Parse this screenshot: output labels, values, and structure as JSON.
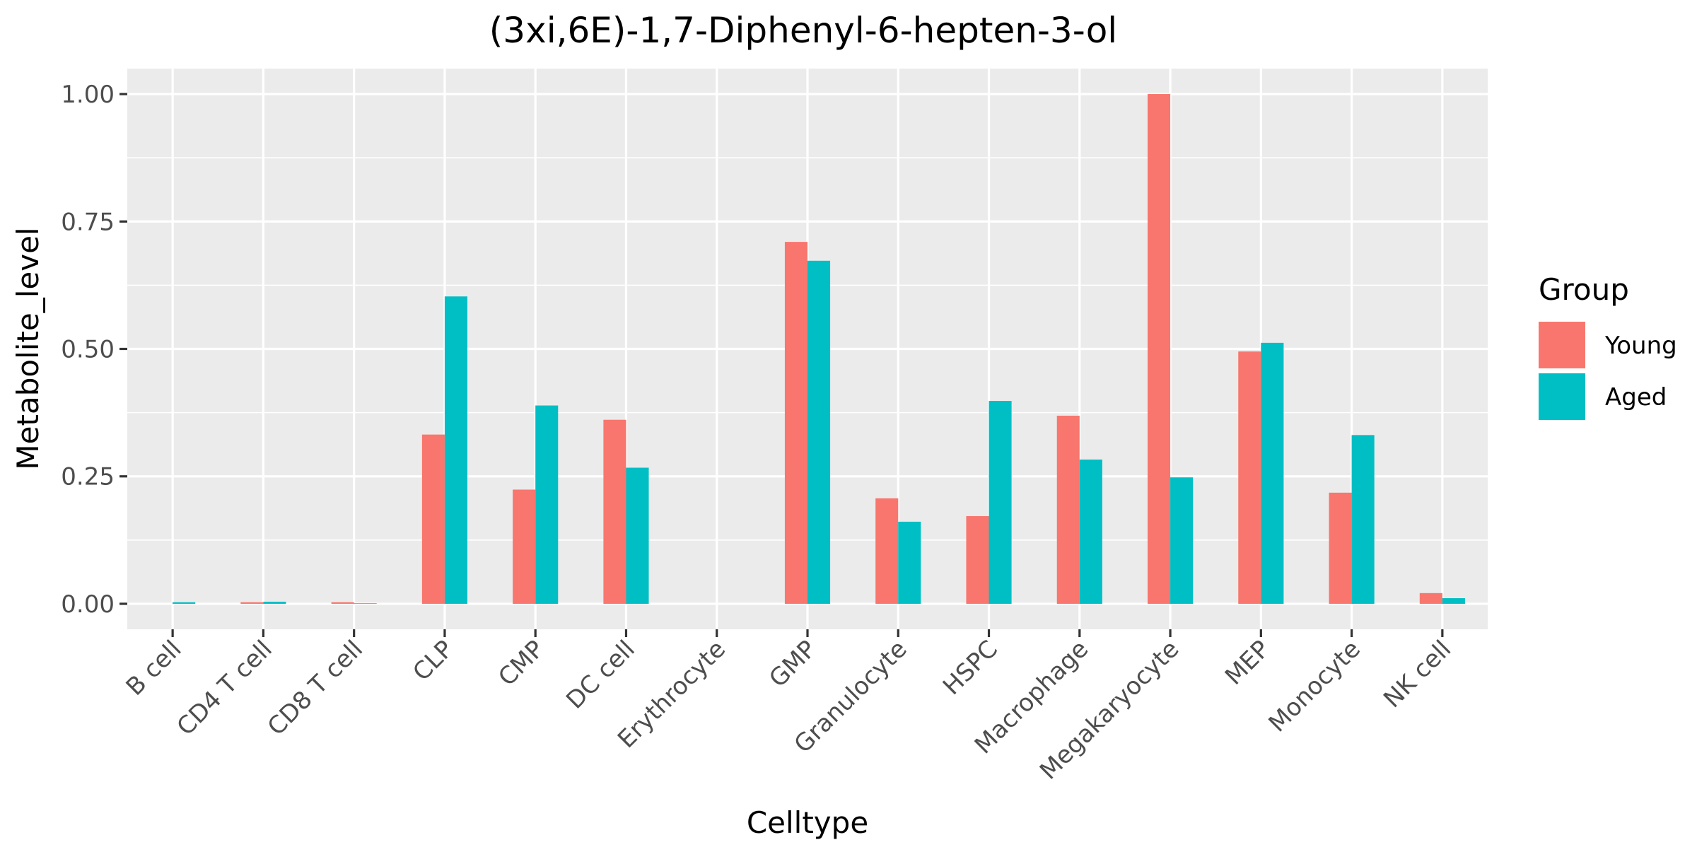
{
  "chart_data": {
    "type": "bar",
    "title": "(3xi,6E)-1,7-Diphenyl-6-hepten-3-ol",
    "xlabel": "Celltype",
    "ylabel": "Metabolite_level",
    "ylim": [
      -0.05,
      1.05
    ],
    "yticks": [
      0.0,
      0.25,
      0.5,
      0.75,
      1.0
    ],
    "ytick_labels": [
      "0.00",
      "0.25",
      "0.50",
      "0.75",
      "1.00"
    ],
    "grid": true,
    "legend_position": "right",
    "categories": [
      "B cell",
      "CD4 T cell",
      "CD8 T cell",
      "CLP",
      "CMP",
      "DC cell",
      "Erythrocyte",
      "GMP",
      "Granulocyte",
      "HSPC",
      "Macrophage",
      "Megakaryocyte",
      "MEP",
      "Monocyte",
      "NK cell"
    ],
    "legend": {
      "title": "Group"
    },
    "series": [
      {
        "name": "Young",
        "color": "#F8766D",
        "values": [
          0.0,
          0.003,
          0.003,
          0.332,
          0.224,
          0.361,
          0.0,
          0.71,
          0.207,
          0.172,
          0.369,
          1.0,
          0.495,
          0.218,
          0.021
        ]
      },
      {
        "name": "Aged",
        "color": "#00BFC4",
        "values": [
          0.003,
          0.004,
          0.001,
          0.603,
          0.389,
          0.267,
          0.0,
          0.673,
          0.161,
          0.398,
          0.283,
          0.248,
          0.512,
          0.331,
          0.011
        ]
      }
    ]
  }
}
